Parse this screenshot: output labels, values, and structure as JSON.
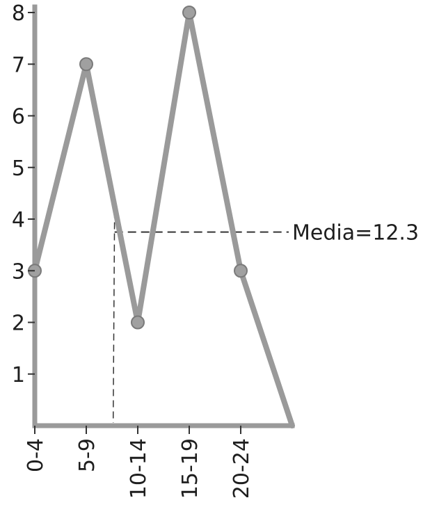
{
  "chart_data": {
    "type": "line",
    "categories": [
      "0-4",
      "5-9",
      "10-14",
      "15-19",
      "20-24"
    ],
    "values": [
      3,
      7,
      2,
      8,
      3
    ],
    "polygon_end_value": 0,
    "ylim": [
      0,
      8
    ],
    "yticks": [
      1,
      2,
      3,
      4,
      5,
      6,
      7,
      8
    ],
    "ytick_labels": [
      "1",
      "2",
      "3",
      "4",
      "5",
      "6",
      "7",
      "8"
    ],
    "grid": false,
    "annotation": {
      "label": "Media=12.3",
      "y_value": 3.75,
      "x_position": 1.55
    },
    "colors": {
      "line": "#9a9a9a",
      "axis": "#9a9a9a",
      "marker": "#a0a0a0",
      "dashed": "#333333",
      "text": "#1e1e1e"
    }
  }
}
